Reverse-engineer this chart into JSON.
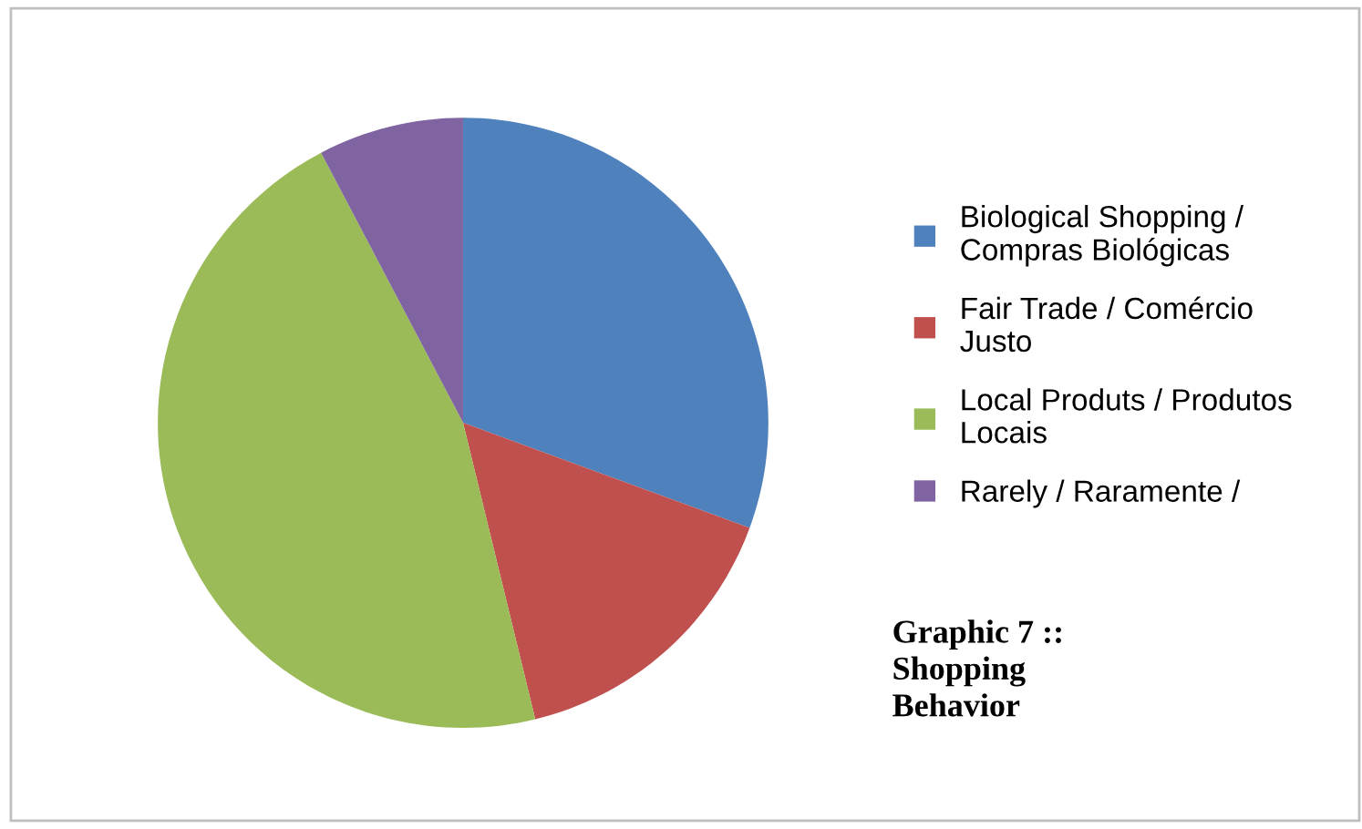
{
  "chart_data": {
    "type": "pie",
    "categories": [
      "Biological Shopping / Compras Biológicas",
      "Fair Trade / Comércio Justo",
      "Local Produts / Produtos Locais",
      "Rarely / Raramente /"
    ],
    "values": [
      30.6,
      15.6,
      46.1,
      7.7
    ],
    "colors": [
      "#4f81bd",
      "#c0504d",
      "#9bbb59",
      "#8064a2"
    ],
    "legend": "right",
    "annotations": [
      "Graphic 7 :: Shopping Behavior"
    ]
  }
}
